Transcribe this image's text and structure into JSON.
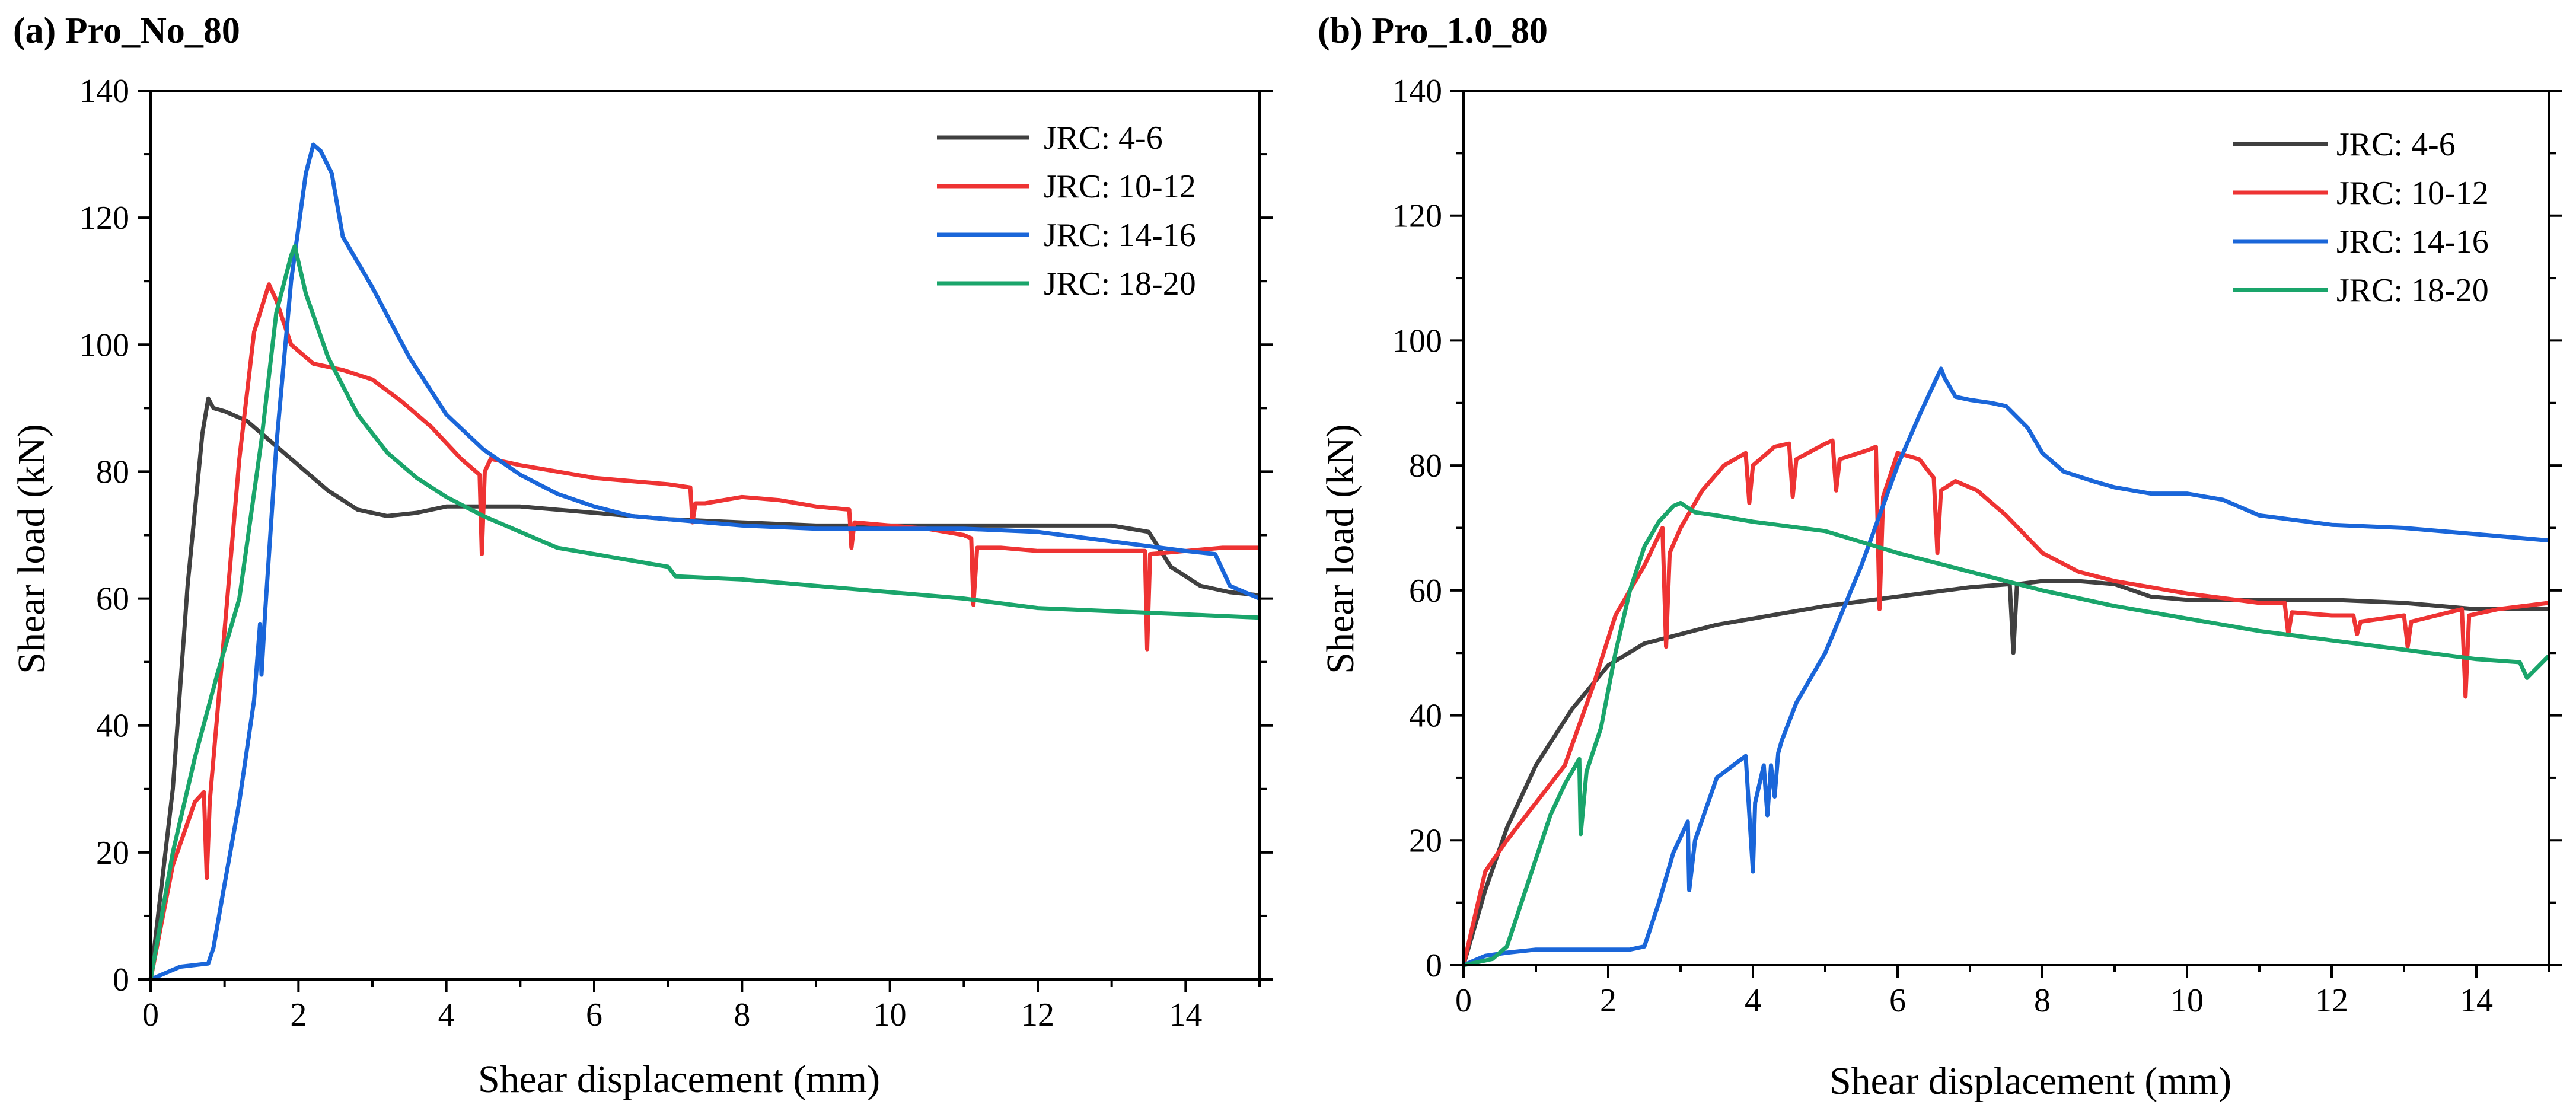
{
  "figure": {
    "panels": [
      "(a) Pro_No_80",
      "(b) Pro_1.0_80"
    ]
  },
  "chart_data": [
    {
      "type": "line",
      "title": "(a) Pro_No_80",
      "xlabel": "Shear displacement (mm)",
      "ylabel": "Shear load (kN)",
      "xlim": [
        0,
        15
      ],
      "ylim": [
        0,
        140
      ],
      "xticks": [
        0,
        2,
        4,
        6,
        8,
        10,
        12,
        14
      ],
      "yticks": [
        0,
        20,
        40,
        60,
        80,
        100,
        120,
        140
      ],
      "legend_position": "top-right",
      "series": [
        {
          "name": "JRC: 4-6",
          "color": "#404040",
          "x": [
            0,
            0.3,
            0.5,
            0.7,
            0.78,
            0.85,
            1.0,
            1.3,
            1.6,
            2.0,
            2.4,
            2.8,
            3.2,
            3.6,
            4.0,
            4.5,
            5.0,
            5.5,
            6.0,
            7.0,
            8.0,
            9.0,
            10.0,
            11.0,
            12.0,
            13.0,
            13.5,
            13.8,
            14.2,
            14.6,
            15.0
          ],
          "y": [
            0,
            30,
            62,
            86,
            91.5,
            90,
            89.5,
            88,
            85,
            81,
            77,
            74,
            73,
            73.5,
            74.5,
            74.5,
            74.5,
            74,
            73.5,
            72.5,
            72,
            71.5,
            71.5,
            71.5,
            71.5,
            71.5,
            70.5,
            65,
            62,
            61,
            60.5
          ]
        },
        {
          "name": "JRC: 10-12",
          "color": "#ee3333",
          "x": [
            0,
            0.3,
            0.6,
            0.72,
            0.76,
            0.8,
            1.0,
            1.2,
            1.4,
            1.6,
            1.7,
            1.9,
            2.2,
            2.6,
            3.0,
            3.4,
            3.8,
            4.2,
            4.45,
            4.48,
            4.52,
            4.6,
            5.0,
            5.5,
            6.0,
            6.5,
            7.0,
            7.3,
            7.33,
            7.37,
            7.5,
            8.0,
            8.5,
            9.0,
            9.45,
            9.48,
            9.52,
            10.0,
            10.5,
            11.0,
            11.1,
            11.13,
            11.18,
            11.5,
            12.0,
            12.5,
            13.0,
            13.45,
            13.48,
            13.52,
            14.0,
            14.5,
            15.0
          ],
          "y": [
            0,
            18,
            28,
            29.5,
            16,
            28,
            55,
            82,
            102,
            109.5,
            107,
            100,
            97,
            96,
            94.5,
            91,
            87,
            82,
            79.5,
            67,
            80,
            82,
            81,
            80,
            79,
            78.5,
            78,
            77.5,
            72,
            75,
            75,
            76,
            75.5,
            74.5,
            74,
            68,
            72,
            71.5,
            71,
            70,
            69.5,
            59,
            68,
            68,
            67.5,
            67.5,
            67.5,
            67.5,
            52,
            67,
            67.5,
            68,
            68
          ]
        },
        {
          "name": "JRC: 14-16",
          "color": "#1a66d9",
          "x": [
            0,
            0.4,
            0.78,
            0.85,
            1.0,
            1.2,
            1.4,
            1.48,
            1.5,
            1.55,
            1.7,
            1.9,
            2.1,
            2.2,
            2.3,
            2.45,
            2.6,
            3.0,
            3.5,
            4.0,
            4.5,
            5.0,
            5.5,
            6.0,
            6.5,
            7.0,
            8.0,
            9.0,
            10.0,
            11.0,
            12.0,
            13.0,
            14.0,
            14.4,
            14.6,
            15.0
          ],
          "y": [
            0,
            2,
            2.5,
            5,
            15,
            28,
            44,
            56,
            48,
            58,
            84,
            110,
            127,
            131.5,
            130.5,
            127,
            117,
            109,
            98,
            89,
            83.5,
            79.5,
            76.5,
            74.5,
            73,
            72.5,
            71.5,
            71,
            71,
            71,
            70.5,
            69,
            67.5,
            67,
            62,
            60
          ]
        },
        {
          "name": "JRC: 18-20",
          "color": "#1aa56b",
          "x": [
            0,
            0.3,
            0.6,
            0.9,
            1.2,
            1.5,
            1.7,
            1.9,
            1.95,
            2.1,
            2.4,
            2.8,
            3.2,
            3.6,
            4.0,
            4.5,
            5.0,
            5.5,
            6.0,
            6.5,
            7.0,
            7.1,
            8.0,
            9.0,
            10.0,
            11.0,
            12.0,
            13.0,
            14.0,
            15.0
          ],
          "y": [
            0,
            20,
            35,
            48,
            60,
            85,
            105,
            114,
            115.5,
            108,
            98,
            89,
            83,
            79,
            76,
            73,
            70.5,
            68,
            67,
            66,
            65,
            63.5,
            63,
            62,
            61,
            60,
            58.5,
            58,
            57.5,
            57
          ]
        }
      ]
    },
    {
      "type": "line",
      "title": "(b) Pro_1.0_80",
      "xlabel": "Shear displacement (mm)",
      "ylabel": "Shear load (kN)",
      "xlim": [
        0,
        15
      ],
      "ylim": [
        0,
        140
      ],
      "xticks": [
        0,
        2,
        4,
        6,
        8,
        10,
        12,
        14
      ],
      "yticks": [
        0,
        20,
        40,
        60,
        80,
        100,
        120,
        140
      ],
      "legend_position": "top-right",
      "series": [
        {
          "name": "JRC: 4-6",
          "color": "#404040",
          "x": [
            0,
            0.3,
            0.6,
            1.0,
            1.5,
            2.0,
            2.5,
            3.0,
            3.5,
            4.0,
            5.0,
            6.0,
            7.0,
            7.55,
            7.6,
            7.65,
            8.0,
            8.5,
            9.0,
            9.5,
            10.0,
            11.0,
            12.0,
            13.0,
            14.0,
            15.0
          ],
          "y": [
            0,
            12,
            22,
            32,
            41,
            48,
            51.5,
            53,
            54.5,
            55.5,
            57.5,
            59,
            60.5,
            61,
            50,
            61,
            61.5,
            61.5,
            61,
            59,
            58.5,
            58.5,
            58.5,
            58,
            57,
            57
          ]
        },
        {
          "name": "JRC: 10-12",
          "color": "#ee3333",
          "x": [
            0,
            0.3,
            0.6,
            1.0,
            1.4,
            1.8,
            2.1,
            2.5,
            2.75,
            2.8,
            2.85,
            3.0,
            3.3,
            3.6,
            3.9,
            3.95,
            4.0,
            4.3,
            4.5,
            4.55,
            4.6,
            5.0,
            5.1,
            5.15,
            5.2,
            5.6,
            5.7,
            5.75,
            5.8,
            6.0,
            6.3,
            6.5,
            6.55,
            6.6,
            6.8,
            7.1,
            7.5,
            8.0,
            8.5,
            9.0,
            9.5,
            10.0,
            11.0,
            11.35,
            11.4,
            11.45,
            12.0,
            12.3,
            12.35,
            12.4,
            13.0,
            13.05,
            13.1,
            13.8,
            13.85,
            13.9,
            14.3,
            15.0
          ],
          "y": [
            0,
            15,
            20,
            26,
            32,
            45,
            56,
            64,
            70,
            51,
            66,
            70,
            76,
            80,
            82,
            74,
            80,
            83,
            83.5,
            75,
            81,
            83.5,
            84,
            76,
            81,
            82.5,
            83,
            57,
            75,
            82,
            81,
            78,
            66,
            76,
            77.5,
            76,
            72,
            66,
            63,
            61.5,
            60.5,
            59.5,
            58,
            58,
            53,
            56.5,
            56,
            56,
            53,
            55,
            56,
            51,
            55,
            57,
            43,
            56,
            57,
            58
          ]
        },
        {
          "name": "JRC: 14-16",
          "color": "#1a66d9",
          "x": [
            0,
            0.3,
            0.6,
            1.0,
            1.5,
            2.0,
            2.3,
            2.5,
            2.7,
            2.9,
            3.1,
            3.12,
            3.2,
            3.5,
            3.9,
            4.0,
            4.03,
            4.15,
            4.2,
            4.25,
            4.3,
            4.35,
            4.4,
            4.6,
            5.0,
            5.5,
            6.0,
            6.3,
            6.6,
            6.65,
            6.8,
            7.0,
            7.3,
            7.5,
            7.8,
            8.0,
            8.3,
            8.7,
            9.0,
            9.5,
            10.0,
            10.5,
            11.0,
            12.0,
            13.0,
            14.0,
            15.0
          ],
          "y": [
            0,
            1.5,
            2,
            2.5,
            2.5,
            2.5,
            2.5,
            3,
            10,
            18,
            23,
            12,
            20,
            30,
            33.5,
            15,
            26,
            32,
            24,
            32,
            27,
            34,
            36,
            42,
            50,
            64,
            80,
            88,
            95.5,
            94,
            91,
            90.5,
            90,
            89.5,
            86,
            82,
            79,
            77.5,
            76.5,
            75.5,
            75.5,
            74.5,
            72,
            70.5,
            70,
            69,
            68
          ]
        },
        {
          "name": "JRC: 18-20",
          "color": "#1aa56b",
          "x": [
            0,
            0.4,
            0.6,
            0.8,
            1.0,
            1.2,
            1.4,
            1.55,
            1.6,
            1.62,
            1.7,
            1.9,
            2.1,
            2.3,
            2.5,
            2.7,
            2.9,
            3.0,
            3.2,
            3.5,
            4.0,
            5.0,
            6.0,
            7.0,
            8.0,
            9.0,
            10.0,
            11.0,
            12.0,
            13.0,
            14.0,
            14.6,
            14.7,
            15.0
          ],
          "y": [
            0,
            1,
            3,
            10,
            17,
            24,
            29,
            32,
            33,
            21,
            31,
            38,
            50,
            60,
            67,
            71,
            73.5,
            74,
            72.5,
            72,
            71,
            69.5,
            66,
            63,
            60,
            57.5,
            55.5,
            53.5,
            52,
            50.5,
            49,
            48.5,
            46,
            49.5
          ]
        }
      ]
    }
  ]
}
